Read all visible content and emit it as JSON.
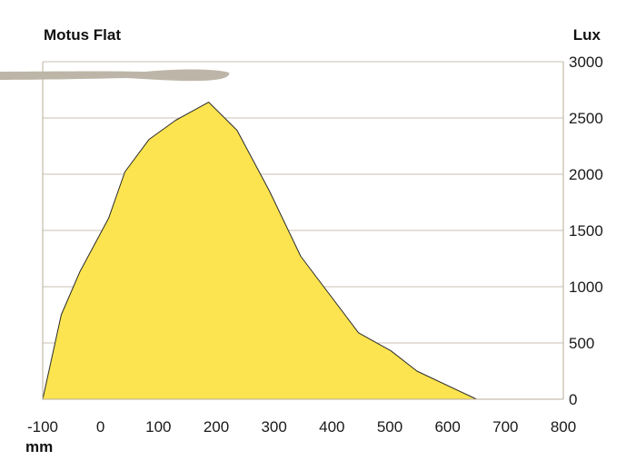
{
  "chart_data": {
    "type": "area",
    "title": "Motus Flat",
    "xlabel": "mm",
    "ylabel": "Lux",
    "xlim": [
      -100,
      800
    ],
    "ylim": [
      0,
      3000
    ],
    "x_ticks": [
      -100,
      0,
      100,
      200,
      300,
      400,
      500,
      600,
      700,
      800
    ],
    "y_ticks": [
      0,
      500,
      1000,
      1500,
      2000,
      2500,
      3000
    ],
    "grid": "horizontal",
    "series": [
      {
        "values_x": [
          -100,
          -68,
          -36,
          14,
          42,
          84,
          130,
          187,
          236,
          292,
          346,
          446,
          502,
          547,
          650
        ],
        "values_y": [
          0,
          750,
          1130,
          1610,
          2020,
          2310,
          2480,
          2640,
          2390,
          1850,
          1270,
          590,
          430,
          250,
          0
        ],
        "fill": "#fbe44f",
        "stroke": "#2b2b2b"
      }
    ],
    "colors": {
      "grid": "#c9c0b0",
      "axis": "#b8ad9a",
      "watermark": "#bdb6a8"
    }
  }
}
